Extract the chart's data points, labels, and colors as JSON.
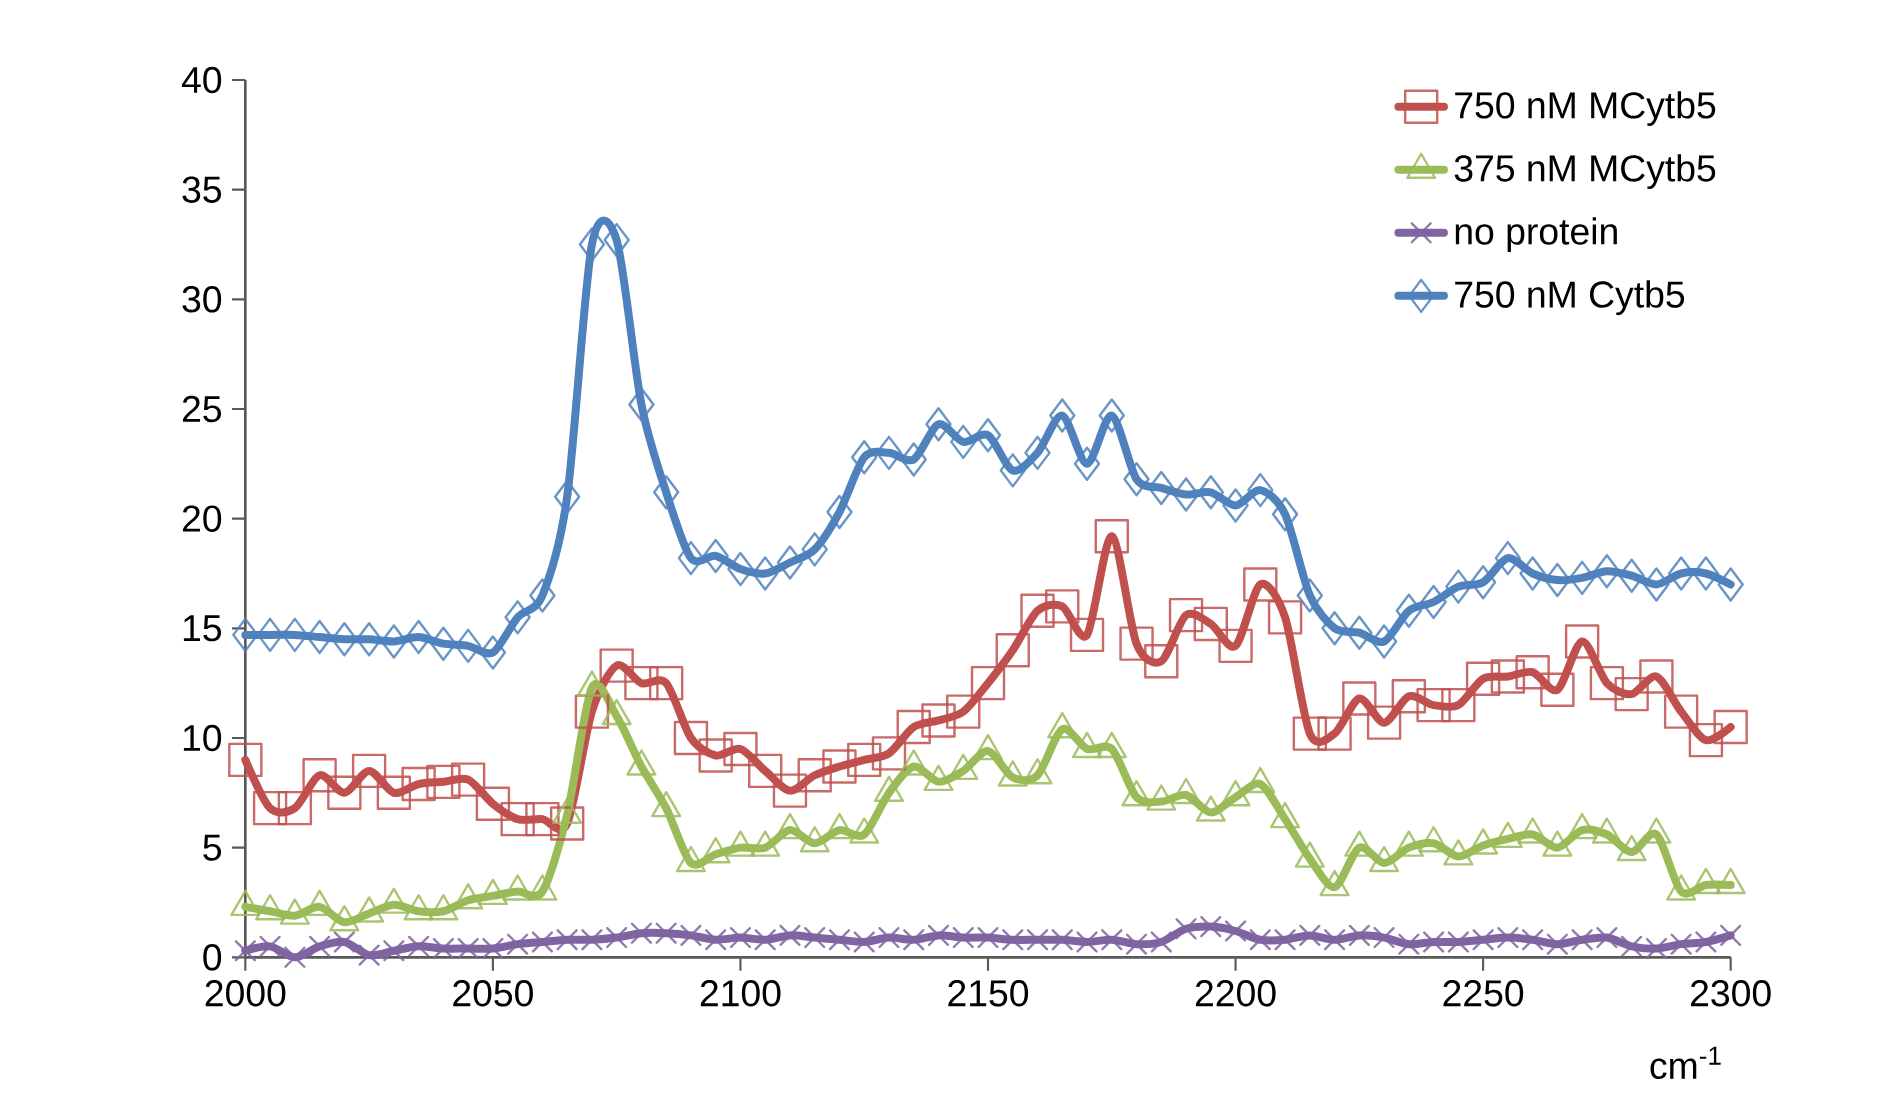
{
  "chart_data": {
    "type": "line",
    "xlabel": "cm$^{-1}$",
    "x": [
      2000,
      2005,
      2010,
      2015,
      2020,
      2025,
      2030,
      2035,
      2040,
      2045,
      2050,
      2055,
      2060,
      2065,
      2070,
      2075,
      2080,
      2085,
      2090,
      2095,
      2100,
      2105,
      2110,
      2115,
      2120,
      2125,
      2130,
      2135,
      2140,
      2145,
      2150,
      2155,
      2160,
      2165,
      2170,
      2175,
      2180,
      2185,
      2190,
      2195,
      2200,
      2205,
      2210,
      2215,
      2220,
      2225,
      2230,
      2235,
      2240,
      2245,
      2250,
      2255,
      2260,
      2265,
      2270,
      2275,
      2280,
      2285,
      2290,
      2295,
      2300
    ],
    "series": [
      {
        "name": "750 nM MCytb5",
        "color": "#c0504d",
        "marker": "square",
        "values": [
          9.0,
          6.8,
          6.8,
          8.3,
          7.5,
          8.5,
          7.5,
          7.9,
          8.0,
          8.1,
          7.0,
          6.3,
          6.3,
          6.1,
          11.2,
          13.3,
          12.5,
          12.5,
          10.0,
          9.2,
          9.5,
          8.5,
          7.6,
          8.3,
          8.7,
          9.0,
          9.3,
          10.5,
          10.8,
          11.2,
          12.5,
          14.0,
          15.8,
          16.0,
          14.7,
          19.2,
          14.3,
          13.5,
          15.6,
          15.2,
          14.2,
          17.0,
          15.5,
          10.2,
          10.2,
          11.8,
          10.7,
          11.9,
          11.5,
          11.5,
          12.7,
          12.8,
          13.0,
          12.2,
          14.4,
          12.5,
          12.0,
          12.8,
          11.2,
          9.9,
          10.5
        ]
      },
      {
        "name": "375 nM MCytb5",
        "color": "#9bbb59",
        "marker": "triangle",
        "values": [
          2.3,
          2.1,
          1.9,
          2.3,
          1.6,
          2.0,
          2.4,
          2.1,
          2.1,
          2.6,
          2.8,
          3.0,
          3.0,
          6.5,
          12.3,
          11.0,
          8.7,
          6.8,
          4.3,
          4.7,
          5.0,
          5.0,
          5.8,
          5.2,
          5.8,
          5.6,
          7.5,
          8.7,
          8.0,
          8.5,
          9.4,
          8.2,
          8.3,
          10.4,
          9.5,
          9.5,
          7.3,
          7.1,
          7.4,
          6.6,
          7.3,
          7.9,
          6.3,
          4.5,
          3.2,
          5.0,
          4.3,
          5.0,
          5.2,
          4.6,
          5.1,
          5.4,
          5.6,
          5.0,
          5.8,
          5.6,
          4.8,
          5.6,
          3.0,
          3.3,
          3.3
        ]
      },
      {
        "name": "no protein",
        "color": "#8064a2",
        "marker": "cross",
        "values": [
          0.3,
          0.5,
          0.0,
          0.5,
          0.7,
          0.1,
          0.3,
          0.5,
          0.4,
          0.4,
          0.4,
          0.6,
          0.7,
          0.8,
          0.8,
          0.9,
          1.1,
          1.1,
          1.0,
          0.8,
          0.9,
          0.8,
          1.0,
          0.9,
          0.8,
          0.7,
          0.9,
          0.8,
          1.0,
          0.9,
          0.9,
          0.8,
          0.8,
          0.8,
          0.7,
          0.8,
          0.6,
          0.7,
          1.3,
          1.4,
          1.2,
          0.8,
          0.8,
          1.0,
          0.8,
          1.0,
          0.9,
          0.6,
          0.7,
          0.7,
          0.8,
          0.9,
          0.8,
          0.6,
          0.8,
          0.9,
          0.5,
          0.4,
          0.6,
          0.7,
          1.0
        ]
      },
      {
        "name": "750 nM Cytb5",
        "color": "#4f81bd",
        "marker": "diamond",
        "values": [
          14.7,
          14.7,
          14.7,
          14.6,
          14.5,
          14.5,
          14.4,
          14.6,
          14.3,
          14.2,
          13.9,
          15.5,
          16.5,
          21.0,
          32.5,
          32.7,
          25.2,
          21.2,
          18.2,
          18.3,
          17.7,
          17.5,
          18.0,
          18.6,
          20.3,
          22.8,
          23.0,
          22.7,
          24.3,
          23.5,
          23.8,
          22.2,
          23.0,
          24.7,
          22.5,
          24.7,
          21.8,
          21.4,
          21.1,
          21.2,
          20.6,
          21.3,
          20.2,
          16.5,
          15.0,
          14.8,
          14.4,
          15.8,
          16.2,
          16.9,
          17.1,
          18.2,
          17.5,
          17.2,
          17.3,
          17.6,
          17.4,
          17.0,
          17.5,
          17.5,
          17.0
        ]
      }
    ],
    "xlim": [
      2000,
      2300
    ],
    "xticks": [
      2000,
      2050,
      2100,
      2150,
      2200,
      2250,
      2300
    ],
    "ylim": [
      0,
      40
    ],
    "yticks": [
      0,
      5,
      10,
      15,
      20,
      25,
      30,
      35,
      40
    ],
    "legend": "top right",
    "line_style": "solid"
  }
}
